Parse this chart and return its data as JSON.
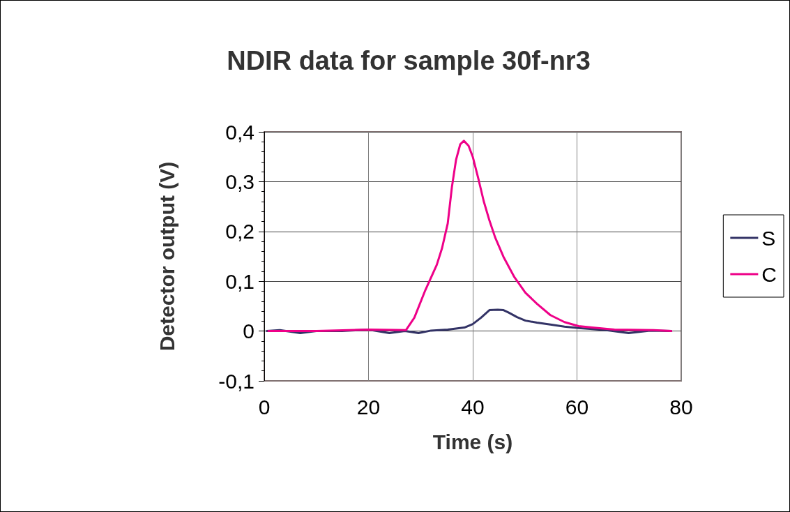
{
  "chart_data": {
    "type": "line",
    "title": "NDIR data for sample 30f-nr3",
    "xlabel": "Time (s)",
    "ylabel": "Detector output (V)",
    "xlim": [
      0,
      80
    ],
    "xticks": [
      0,
      20,
      40,
      60,
      80
    ],
    "ylim": [
      -0.1,
      0.4
    ],
    "yticks": [
      {
        "value": -0.1,
        "label": "-0,1"
      },
      0,
      {
        "value": 0.1,
        "label": "0,1"
      },
      {
        "value": 0.2,
        "label": "0,2"
      },
      {
        "value": 0.3,
        "label": "0,3"
      },
      {
        "value": 0.4,
        "label": "0,4"
      }
    ],
    "grid": true,
    "legend": "right",
    "marker": "none",
    "line_style": "solid",
    "series": [
      {
        "name": "S",
        "color": "#333366",
        "x": [
          0.5,
          3,
          6.9,
          10,
          14.9,
          18,
          20,
          24,
          27,
          29.6,
          32,
          35.2,
          38.4,
          40,
          41.6,
          43.2,
          44.8,
          45.9,
          46.9,
          48.5,
          50.1,
          52.3,
          54.9,
          57.6,
          60.3,
          65.6,
          69.9,
          74,
          78.1
        ],
        "values": [
          0,
          0.002,
          -0.004,
          0,
          0,
          0.002,
          0.003,
          -0.004,
          0,
          -0.004,
          0.001,
          0.003,
          0.007,
          0.014,
          0.027,
          0.042,
          0.043,
          0.042,
          0.037,
          0.028,
          0.021,
          0.017,
          0.013,
          0.009,
          0.006,
          0.002,
          -0.004,
          0.001,
          0
        ]
      },
      {
        "name": "C",
        "color": "#ee0088",
        "x": [
          0.8,
          10,
          20.3,
          27.2,
          28.8,
          30.9,
          33.1,
          34.1,
          35.2,
          36,
          36.8,
          37.6,
          38.3,
          39.2,
          40,
          41.1,
          42.1,
          43.2,
          44.3,
          45.9,
          48,
          50.1,
          52.3,
          54.9,
          57.6,
          60.3,
          62.9,
          67.2,
          74.7,
          78.1
        ],
        "values": [
          0,
          0,
          0.003,
          0.002,
          0.027,
          0.082,
          0.133,
          0.166,
          0.216,
          0.289,
          0.344,
          0.375,
          0.382,
          0.372,
          0.35,
          0.305,
          0.261,
          0.222,
          0.188,
          0.149,
          0.108,
          0.077,
          0.055,
          0.032,
          0.018,
          0.01,
          0.007,
          0.003,
          0.002,
          0
        ]
      }
    ]
  }
}
